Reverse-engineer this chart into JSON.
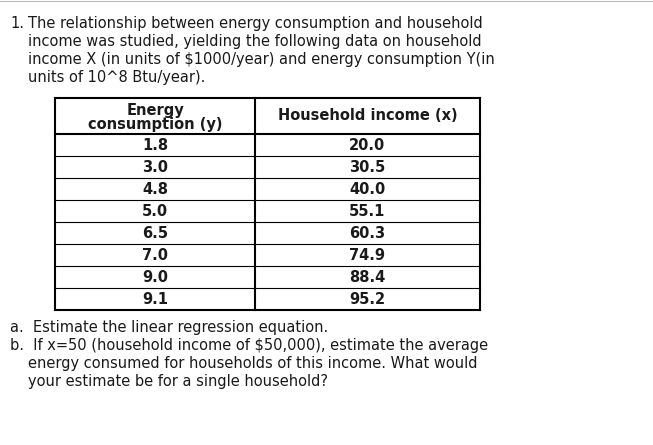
{
  "background_color": "#ffffff",
  "border_top_color": "#cccccc",
  "intro_number": "1.",
  "intro_line1": "The relationship between energy consumption and household",
  "intro_line2": "income was studied, yielding the following data on household",
  "intro_line3": "income X (in units of $1000/year) and energy consumption Y(in",
  "intro_line4": "units of 10^8 Btu/year).",
  "col1_header_line1": "Energy",
  "col1_header_line2": "consumption (y)",
  "col2_header": "Household income (x)",
  "energy_consumption": [
    "1.8",
    "3.0",
    "4.8",
    "5.0",
    "6.5",
    "7.0",
    "9.0",
    "9.1"
  ],
  "household_income": [
    "20.0",
    "30.5",
    "40.0",
    "55.1",
    "60.3",
    "74.9",
    "88.4",
    "95.2"
  ],
  "question_a": "a.  Estimate the linear regression equation.",
  "question_b1": "b.  If x=50 (household income of $50,000), estimate the average",
  "question_b2": "     energy consumed for households of this income. What would",
  "question_b3": "     your estimate be for a single household?",
  "font_size": 10.5,
  "font_size_bold": 10.5,
  "text_color": "#1a1a1a",
  "table_line_color": "#000000",
  "indent_text": 0.075,
  "indent_cont": 0.115
}
